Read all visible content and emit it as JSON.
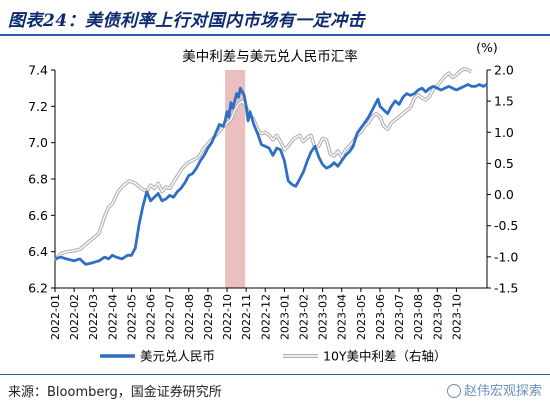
{
  "figure": {
    "title": "图表24：美债利率上行对国内市场有一定冲击",
    "source": "来源：Bloomberg，国金证券研究所",
    "watermark": "赵伟宏观探索"
  },
  "colors": {
    "title": "#0b2a6f",
    "rule": "#2a5db0",
    "series_usdcny": "#2e6fc4",
    "series_spread": "#b3b3b3",
    "highlight": "#e8b4b4"
  },
  "chart_data": {
    "type": "line",
    "title": "美中利差与美元兑人民币汇率",
    "right_axis_unit": "(%)",
    "y_left": {
      "min": 6.2,
      "max": 7.4,
      "ticks": [
        "6.2",
        "6.4",
        "6.6",
        "6.8",
        "7.0",
        "7.2",
        "7.4"
      ]
    },
    "y_right": {
      "min": -1.5,
      "max": 2.0,
      "ticks": [
        "-1.5",
        "-1.0",
        "-0.5",
        "0.0",
        "0.5",
        "1.0",
        "1.5",
        "2.0"
      ]
    },
    "x_ticks": [
      "2022-01",
      "2022-02",
      "2022-03",
      "2022-04",
      "2022-05",
      "2022-06",
      "2022-07",
      "2022-08",
      "2022-09",
      "2022-10",
      "2022-11",
      "2022-12",
      "2023-01",
      "2023-02",
      "2023-03",
      "2023-04",
      "2023-05",
      "2023-06",
      "2023-07",
      "2023-08",
      "2023-09",
      "2023-10"
    ],
    "x_end": 22.6,
    "highlight": {
      "from": 8.9,
      "to": 9.95
    },
    "series": [
      {
        "name": "美元兑人民币",
        "axis": "left",
        "points": [
          [
            0.0,
            6.36
          ],
          [
            0.3,
            6.37
          ],
          [
            0.6,
            6.36
          ],
          [
            1.0,
            6.35
          ],
          [
            1.3,
            6.36
          ],
          [
            1.6,
            6.33
          ],
          [
            2.0,
            6.34
          ],
          [
            2.3,
            6.35
          ],
          [
            2.6,
            6.37
          ],
          [
            2.8,
            6.36
          ],
          [
            3.0,
            6.38
          ],
          [
            3.2,
            6.37
          ],
          [
            3.5,
            6.36
          ],
          [
            3.8,
            6.38
          ],
          [
            4.0,
            6.38
          ],
          [
            4.2,
            6.42
          ],
          [
            4.4,
            6.55
          ],
          [
            4.6,
            6.65
          ],
          [
            4.8,
            6.73
          ],
          [
            5.0,
            6.68
          ],
          [
            5.2,
            6.7
          ],
          [
            5.4,
            6.72
          ],
          [
            5.6,
            6.68
          ],
          [
            5.8,
            6.69
          ],
          [
            6.0,
            6.71
          ],
          [
            6.2,
            6.7
          ],
          [
            6.4,
            6.73
          ],
          [
            6.6,
            6.75
          ],
          [
            6.8,
            6.78
          ],
          [
            7.0,
            6.82
          ],
          [
            7.2,
            6.83
          ],
          [
            7.4,
            6.86
          ],
          [
            7.6,
            6.9
          ],
          [
            7.8,
            6.93
          ],
          [
            8.0,
            6.97
          ],
          [
            8.2,
            7.0
          ],
          [
            8.4,
            7.05
          ],
          [
            8.6,
            7.1
          ],
          [
            8.8,
            7.09
          ],
          [
            8.9,
            7.12
          ],
          [
            9.0,
            7.17
          ],
          [
            9.1,
            7.14
          ],
          [
            9.2,
            7.22
          ],
          [
            9.3,
            7.19
          ],
          [
            9.4,
            7.23
          ],
          [
            9.5,
            7.27
          ],
          [
            9.6,
            7.25
          ],
          [
            9.7,
            7.3
          ],
          [
            9.8,
            7.28
          ],
          [
            9.9,
            7.26
          ],
          [
            10.0,
            7.2
          ],
          [
            10.1,
            7.12
          ],
          [
            10.2,
            7.17
          ],
          [
            10.4,
            7.1
          ],
          [
            10.6,
            7.05
          ],
          [
            10.8,
            6.99
          ],
          [
            11.0,
            6.98
          ],
          [
            11.2,
            6.97
          ],
          [
            11.4,
            6.93
          ],
          [
            11.6,
            6.97
          ],
          [
            11.8,
            6.96
          ],
          [
            12.0,
            6.9
          ],
          [
            12.2,
            6.79
          ],
          [
            12.4,
            6.77
          ],
          [
            12.6,
            6.76
          ],
          [
            12.8,
            6.8
          ],
          [
            13.0,
            6.84
          ],
          [
            13.2,
            6.9
          ],
          [
            13.4,
            6.95
          ],
          [
            13.6,
            6.98
          ],
          [
            13.8,
            6.92
          ],
          [
            14.0,
            6.88
          ],
          [
            14.2,
            6.86
          ],
          [
            14.4,
            6.87
          ],
          [
            14.6,
            6.89
          ],
          [
            14.8,
            6.87
          ],
          [
            15.0,
            6.9
          ],
          [
            15.2,
            6.93
          ],
          [
            15.4,
            6.95
          ],
          [
            15.6,
            6.98
          ],
          [
            15.8,
            7.05
          ],
          [
            16.0,
            7.08
          ],
          [
            16.2,
            7.11
          ],
          [
            16.4,
            7.14
          ],
          [
            16.6,
            7.18
          ],
          [
            16.8,
            7.22
          ],
          [
            16.9,
            7.24
          ],
          [
            17.0,
            7.2
          ],
          [
            17.2,
            7.18
          ],
          [
            17.4,
            7.16
          ],
          [
            17.6,
            7.2
          ],
          [
            17.8,
            7.23
          ],
          [
            18.0,
            7.21
          ],
          [
            18.2,
            7.25
          ],
          [
            18.4,
            7.27
          ],
          [
            18.6,
            7.26
          ],
          [
            18.8,
            7.27
          ],
          [
            19.0,
            7.29
          ],
          [
            19.2,
            7.3
          ],
          [
            19.4,
            7.28
          ],
          [
            19.6,
            7.3
          ],
          [
            19.8,
            7.31
          ],
          [
            20.0,
            7.3
          ],
          [
            20.2,
            7.29
          ],
          [
            20.4,
            7.3
          ],
          [
            20.6,
            7.31
          ],
          [
            20.8,
            7.3
          ],
          [
            21.0,
            7.29
          ],
          [
            21.2,
            7.3
          ],
          [
            21.4,
            7.31
          ],
          [
            21.6,
            7.32
          ],
          [
            21.8,
            7.31
          ],
          [
            22.0,
            7.31
          ],
          [
            22.2,
            7.32
          ],
          [
            22.4,
            7.31
          ],
          [
            22.6,
            7.32
          ]
        ]
      },
      {
        "name": "10Y美中利差（右轴）",
        "axis": "right",
        "points": [
          [
            0.0,
            -1.05
          ],
          [
            0.3,
            -0.95
          ],
          [
            0.6,
            -0.92
          ],
          [
            1.0,
            -0.9
          ],
          [
            1.3,
            -0.88
          ],
          [
            1.6,
            -0.8
          ],
          [
            2.0,
            -0.7
          ],
          [
            2.3,
            -0.62
          ],
          [
            2.6,
            -0.35
          ],
          [
            2.8,
            -0.2
          ],
          [
            3.0,
            -0.15
          ],
          [
            3.3,
            0.05
          ],
          [
            3.6,
            0.15
          ],
          [
            3.9,
            0.22
          ],
          [
            4.2,
            0.18
          ],
          [
            4.5,
            0.1
          ],
          [
            4.8,
            0.05
          ],
          [
            5.0,
            0.15
          ],
          [
            5.2,
            0.1
          ],
          [
            5.4,
            0.18
          ],
          [
            5.6,
            0.05
          ],
          [
            5.8,
            0.12
          ],
          [
            6.0,
            0.1
          ],
          [
            6.3,
            0.25
          ],
          [
            6.6,
            0.4
          ],
          [
            6.9,
            0.5
          ],
          [
            7.2,
            0.55
          ],
          [
            7.5,
            0.6
          ],
          [
            7.8,
            0.75
          ],
          [
            8.1,
            0.85
          ],
          [
            8.4,
            0.95
          ],
          [
            8.7,
            1.05
          ],
          [
            9.0,
            1.15
          ],
          [
            9.2,
            1.2
          ],
          [
            9.4,
            1.35
          ],
          [
            9.6,
            1.45
          ],
          [
            9.8,
            1.5
          ],
          [
            10.0,
            1.4
          ],
          [
            10.2,
            1.28
          ],
          [
            10.4,
            1.2
          ],
          [
            10.6,
            1.05
          ],
          [
            10.8,
            0.98
          ],
          [
            11.0,
            1.0
          ],
          [
            11.2,
            0.95
          ],
          [
            11.4,
            0.88
          ],
          [
            11.6,
            0.95
          ],
          [
            11.8,
            0.85
          ],
          [
            12.0,
            0.72
          ],
          [
            12.2,
            0.78
          ],
          [
            12.5,
            0.9
          ],
          [
            12.8,
            0.95
          ],
          [
            13.0,
            0.85
          ],
          [
            13.2,
            0.92
          ],
          [
            13.4,
            0.95
          ],
          [
            13.6,
            0.75
          ],
          [
            13.8,
            0.78
          ],
          [
            14.0,
            0.9
          ],
          [
            14.2,
            0.88
          ],
          [
            14.4,
            0.65
          ],
          [
            14.6,
            0.62
          ],
          [
            14.8,
            0.7
          ],
          [
            15.0,
            0.6
          ],
          [
            15.2,
            0.72
          ],
          [
            15.4,
            0.78
          ],
          [
            15.6,
            0.85
          ],
          [
            15.8,
            0.95
          ],
          [
            16.0,
            1.0
          ],
          [
            16.2,
            1.1
          ],
          [
            16.4,
            1.15
          ],
          [
            16.6,
            1.25
          ],
          [
            16.8,
            1.3
          ],
          [
            17.0,
            1.25
          ],
          [
            17.2,
            1.1
          ],
          [
            17.4,
            1.05
          ],
          [
            17.6,
            1.15
          ],
          [
            17.8,
            1.2
          ],
          [
            18.0,
            1.25
          ],
          [
            18.2,
            1.3
          ],
          [
            18.4,
            1.35
          ],
          [
            18.6,
            1.4
          ],
          [
            18.8,
            1.55
          ],
          [
            19.0,
            1.6
          ],
          [
            19.2,
            1.55
          ],
          [
            19.4,
            1.52
          ],
          [
            19.6,
            1.58
          ],
          [
            19.8,
            1.7
          ],
          [
            20.0,
            1.75
          ],
          [
            20.2,
            1.82
          ],
          [
            20.4,
            1.9
          ],
          [
            20.6,
            1.95
          ],
          [
            20.8,
            1.88
          ],
          [
            21.0,
            1.92
          ],
          [
            21.2,
            1.98
          ],
          [
            21.4,
            2.02
          ],
          [
            21.6,
            2.0
          ],
          [
            21.8,
            1.97
          ]
        ]
      }
    ],
    "grid": false,
    "legend_position": "bottom"
  }
}
